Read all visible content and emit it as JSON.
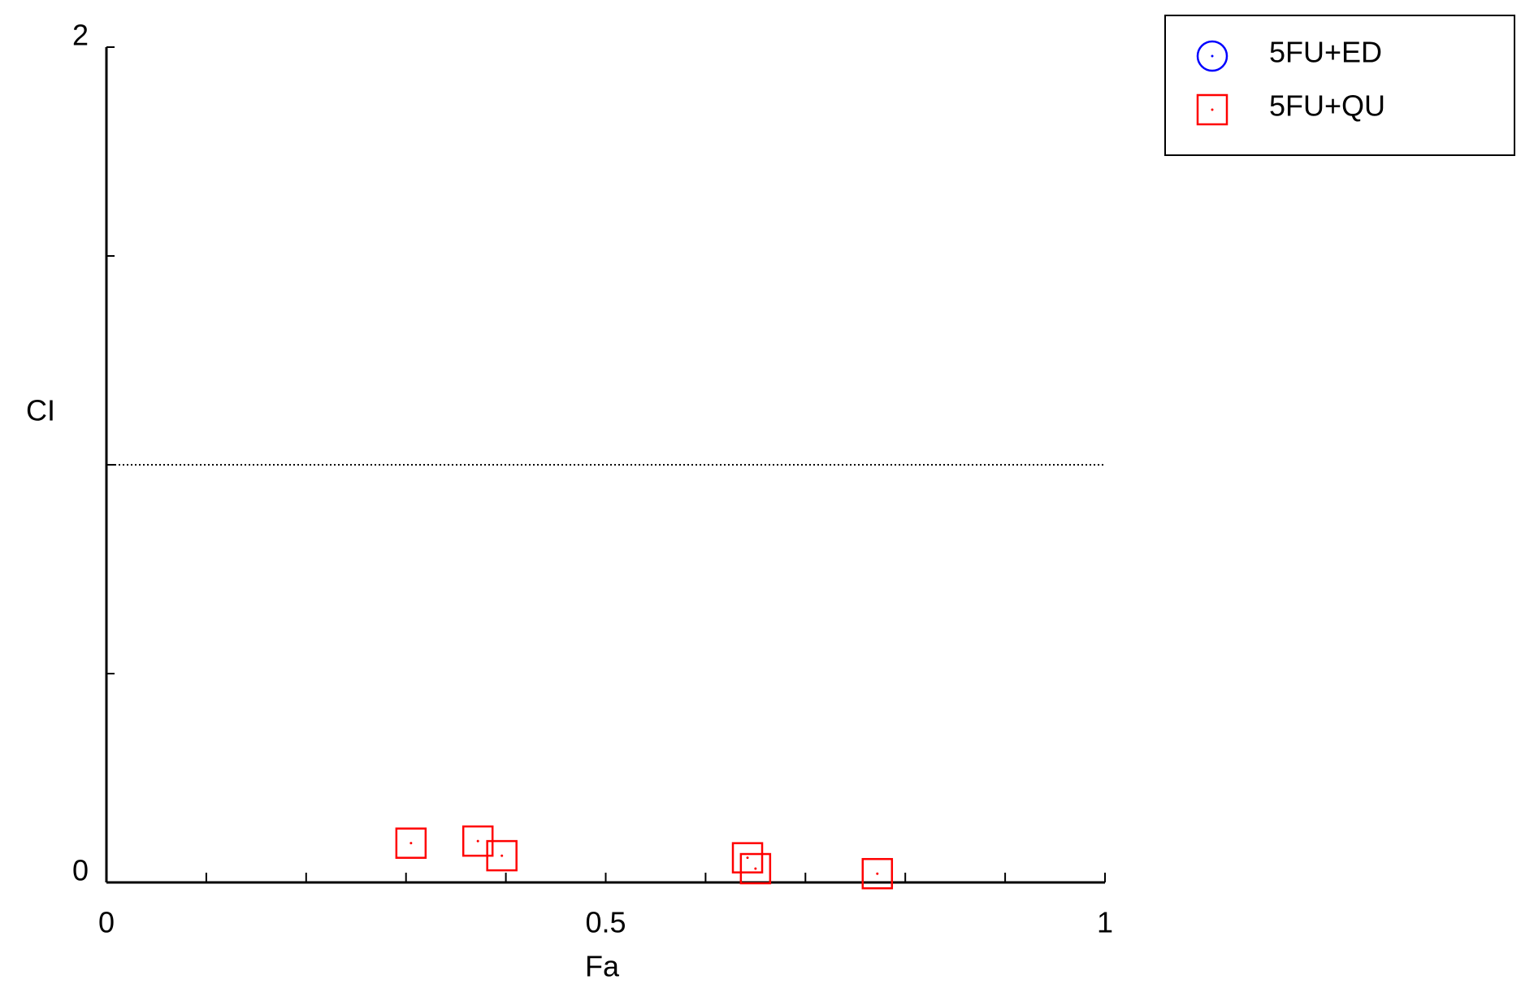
{
  "chart_data": {
    "type": "scatter",
    "xlabel": "Fa",
    "ylabel": "CI",
    "xlim": [
      0,
      1
    ],
    "ylim": [
      0,
      2
    ],
    "xticks": [
      0,
      0.5,
      1
    ],
    "yticks": [
      0,
      2
    ],
    "xminor_ticks": [
      0.1,
      0.2,
      0.3,
      0.4,
      0.6,
      0.7,
      0.8,
      0.9
    ],
    "yminor_ticks": [
      0.5,
      1,
      1.5
    ],
    "hline": 1,
    "legend": "outside-top-right",
    "series": [
      {
        "name": "5FU+ED",
        "color": "#0000ff",
        "marker": "circle",
        "x": [],
        "values": []
      },
      {
        "name": "5FU+QU",
        "color": "#ff0000",
        "marker": "square",
        "x": [
          0.305,
          0.372,
          0.396,
          0.642,
          0.65,
          0.772
        ],
        "values": [
          0.094,
          0.099,
          0.064,
          0.059,
          0.033,
          0.021
        ]
      }
    ]
  }
}
